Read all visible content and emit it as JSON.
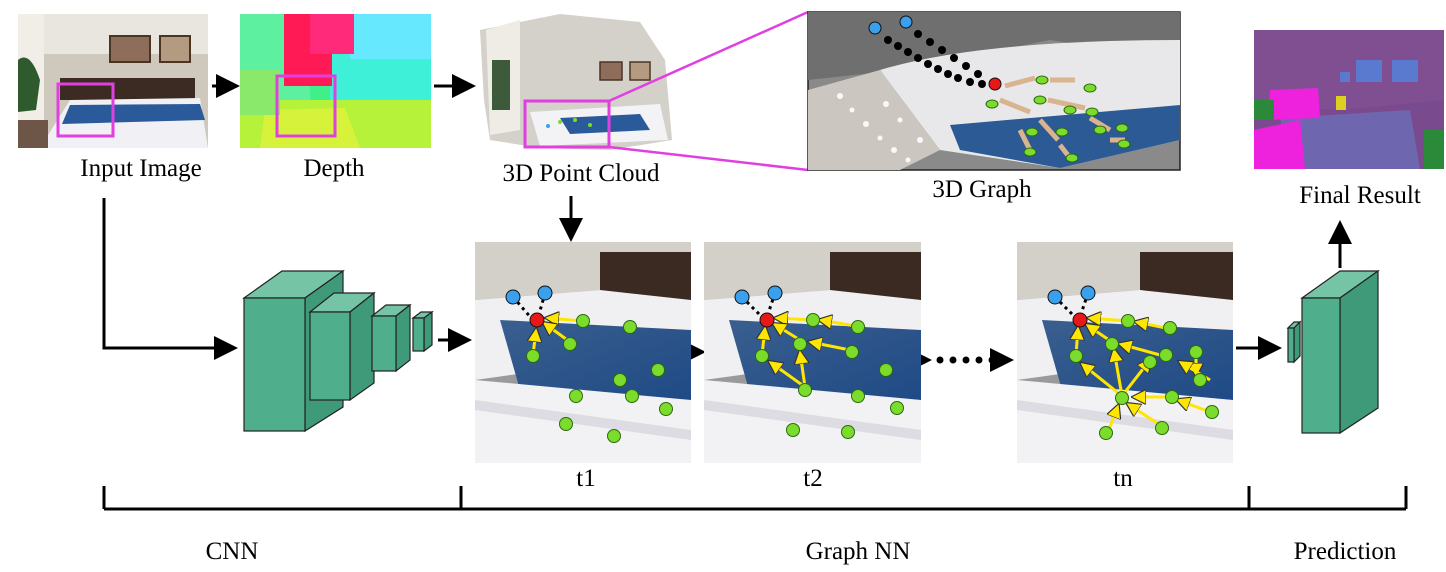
{
  "labels": {
    "input_image": "Input Image",
    "depth": "Depth",
    "point_cloud": "3D Point Cloud",
    "graph_3d": "3D Graph",
    "final_result": "Final Result",
    "t1": "t1",
    "t2": "t2",
    "tn": "tn"
  },
  "stages": {
    "cnn": "CNN",
    "graph_nn": "Graph NN",
    "prediction": "Prediction"
  },
  "colors": {
    "block": "#4fae8c",
    "highlight_box": "#e040e0",
    "node_green": "#7cdc2c",
    "node_blue": "#3aa0ee",
    "node_red": "#e81818",
    "edge_yellow": "#ffe600",
    "edge_tan": "#d9b48f"
  }
}
